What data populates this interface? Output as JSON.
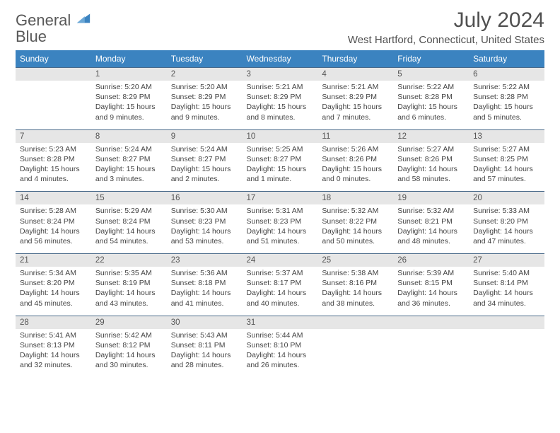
{
  "brand": {
    "word1": "General",
    "word2": "Blue"
  },
  "title": "July 2024",
  "location": "West Hartford, Connecticut, United States",
  "colors": {
    "header_bg": "#3b83c0",
    "header_fg": "#ffffff",
    "daynum_bg": "#e6e6e6",
    "border": "#4a6a8a",
    "text": "#444444"
  },
  "day_headers": [
    "Sunday",
    "Monday",
    "Tuesday",
    "Wednesday",
    "Thursday",
    "Friday",
    "Saturday"
  ],
  "weeks": [
    [
      {
        "n": "",
        "sr": "",
        "ss": "",
        "dl": ""
      },
      {
        "n": "1",
        "sr": "5:20 AM",
        "ss": "8:29 PM",
        "dl": "15 hours and 9 minutes."
      },
      {
        "n": "2",
        "sr": "5:20 AM",
        "ss": "8:29 PM",
        "dl": "15 hours and 9 minutes."
      },
      {
        "n": "3",
        "sr": "5:21 AM",
        "ss": "8:29 PM",
        "dl": "15 hours and 8 minutes."
      },
      {
        "n": "4",
        "sr": "5:21 AM",
        "ss": "8:29 PM",
        "dl": "15 hours and 7 minutes."
      },
      {
        "n": "5",
        "sr": "5:22 AM",
        "ss": "8:28 PM",
        "dl": "15 hours and 6 minutes."
      },
      {
        "n": "6",
        "sr": "5:22 AM",
        "ss": "8:28 PM",
        "dl": "15 hours and 5 minutes."
      }
    ],
    [
      {
        "n": "7",
        "sr": "5:23 AM",
        "ss": "8:28 PM",
        "dl": "15 hours and 4 minutes."
      },
      {
        "n": "8",
        "sr": "5:24 AM",
        "ss": "8:27 PM",
        "dl": "15 hours and 3 minutes."
      },
      {
        "n": "9",
        "sr": "5:24 AM",
        "ss": "8:27 PM",
        "dl": "15 hours and 2 minutes."
      },
      {
        "n": "10",
        "sr": "5:25 AM",
        "ss": "8:27 PM",
        "dl": "15 hours and 1 minute."
      },
      {
        "n": "11",
        "sr": "5:26 AM",
        "ss": "8:26 PM",
        "dl": "15 hours and 0 minutes."
      },
      {
        "n": "12",
        "sr": "5:27 AM",
        "ss": "8:26 PM",
        "dl": "14 hours and 58 minutes."
      },
      {
        "n": "13",
        "sr": "5:27 AM",
        "ss": "8:25 PM",
        "dl": "14 hours and 57 minutes."
      }
    ],
    [
      {
        "n": "14",
        "sr": "5:28 AM",
        "ss": "8:24 PM",
        "dl": "14 hours and 56 minutes."
      },
      {
        "n": "15",
        "sr": "5:29 AM",
        "ss": "8:24 PM",
        "dl": "14 hours and 54 minutes."
      },
      {
        "n": "16",
        "sr": "5:30 AM",
        "ss": "8:23 PM",
        "dl": "14 hours and 53 minutes."
      },
      {
        "n": "17",
        "sr": "5:31 AM",
        "ss": "8:23 PM",
        "dl": "14 hours and 51 minutes."
      },
      {
        "n": "18",
        "sr": "5:32 AM",
        "ss": "8:22 PM",
        "dl": "14 hours and 50 minutes."
      },
      {
        "n": "19",
        "sr": "5:32 AM",
        "ss": "8:21 PM",
        "dl": "14 hours and 48 minutes."
      },
      {
        "n": "20",
        "sr": "5:33 AM",
        "ss": "8:20 PM",
        "dl": "14 hours and 47 minutes."
      }
    ],
    [
      {
        "n": "21",
        "sr": "5:34 AM",
        "ss": "8:20 PM",
        "dl": "14 hours and 45 minutes."
      },
      {
        "n": "22",
        "sr": "5:35 AM",
        "ss": "8:19 PM",
        "dl": "14 hours and 43 minutes."
      },
      {
        "n": "23",
        "sr": "5:36 AM",
        "ss": "8:18 PM",
        "dl": "14 hours and 41 minutes."
      },
      {
        "n": "24",
        "sr": "5:37 AM",
        "ss": "8:17 PM",
        "dl": "14 hours and 40 minutes."
      },
      {
        "n": "25",
        "sr": "5:38 AM",
        "ss": "8:16 PM",
        "dl": "14 hours and 38 minutes."
      },
      {
        "n": "26",
        "sr": "5:39 AM",
        "ss": "8:15 PM",
        "dl": "14 hours and 36 minutes."
      },
      {
        "n": "27",
        "sr": "5:40 AM",
        "ss": "8:14 PM",
        "dl": "14 hours and 34 minutes."
      }
    ],
    [
      {
        "n": "28",
        "sr": "5:41 AM",
        "ss": "8:13 PM",
        "dl": "14 hours and 32 minutes."
      },
      {
        "n": "29",
        "sr": "5:42 AM",
        "ss": "8:12 PM",
        "dl": "14 hours and 30 minutes."
      },
      {
        "n": "30",
        "sr": "5:43 AM",
        "ss": "8:11 PM",
        "dl": "14 hours and 28 minutes."
      },
      {
        "n": "31",
        "sr": "5:44 AM",
        "ss": "8:10 PM",
        "dl": "14 hours and 26 minutes."
      },
      {
        "n": "",
        "sr": "",
        "ss": "",
        "dl": ""
      },
      {
        "n": "",
        "sr": "",
        "ss": "",
        "dl": ""
      },
      {
        "n": "",
        "sr": "",
        "ss": "",
        "dl": ""
      }
    ]
  ],
  "labels": {
    "sunrise": "Sunrise: ",
    "sunset": "Sunset: ",
    "daylight": "Daylight: "
  }
}
